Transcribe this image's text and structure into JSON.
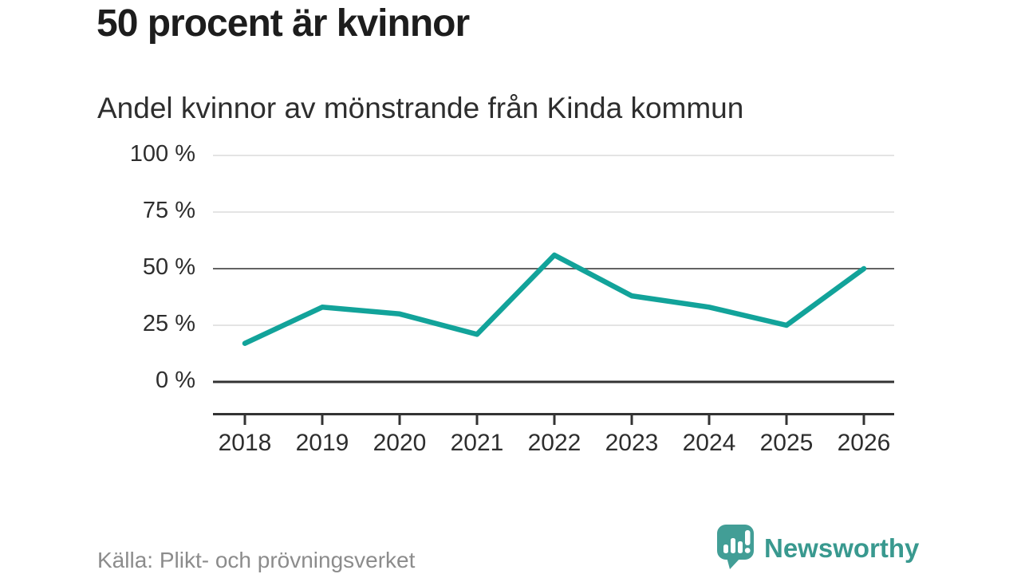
{
  "chart_data": {
    "type": "line",
    "title": "50 procent är kvinnor",
    "subtitle": "Andel kvinnor av mönstrande från Kinda kommun",
    "categories": [
      "2018",
      "2019",
      "2020",
      "2021",
      "2022",
      "2023",
      "2024",
      "2025",
      "2026"
    ],
    "values": [
      17,
      33,
      30,
      21,
      56,
      38,
      33,
      25,
      50
    ],
    "unit": "%",
    "ylim": [
      0,
      100
    ],
    "y_ticks": [
      0,
      25,
      50,
      75,
      100
    ],
    "y_tick_labels": [
      "0 %",
      "25 %",
      "50 %",
      "75 %",
      "100 %"
    ],
    "emphasized_gridline": 50,
    "grid": true,
    "legend": "none",
    "colors": {
      "line": "#12a39a",
      "grid": "#e4e4e4",
      "emphasized_grid": "#636363",
      "baseline": "#333333",
      "axis": "#333333",
      "tick_label": "#2e2e2e"
    }
  },
  "footer": {
    "source": "Källa: Plikt- och prövningsverket",
    "brand": "Newsworthy",
    "brand_color": "#39998f",
    "brand_icon_color": "#429e96",
    "brand_icon": "speech-bubble-bar-chart-exclamation"
  }
}
